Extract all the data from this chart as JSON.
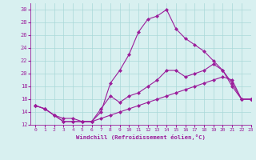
{
  "xlabel": "Windchill (Refroidissement éolien,°C)",
  "x": [
    0,
    1,
    2,
    3,
    4,
    5,
    6,
    7,
    8,
    9,
    10,
    11,
    12,
    13,
    14,
    15,
    16,
    17,
    18,
    19,
    20,
    21,
    22,
    23
  ],
  "line1": [
    15,
    14.5,
    13.5,
    13,
    13,
    12.5,
    12.5,
    13,
    13.5,
    14,
    14.5,
    15,
    15.5,
    16,
    16.5,
    17,
    17.5,
    18,
    18.5,
    19,
    19.5,
    19,
    16,
    16
  ],
  "line2": [
    15,
    14.5,
    13.5,
    12.5,
    12.5,
    12.5,
    12.5,
    14,
    18.5,
    20.5,
    23,
    26.5,
    28.5,
    29,
    30,
    27,
    25.5,
    24.5,
    23.5,
    22,
    20.5,
    18,
    16,
    16
  ],
  "line3": [
    15,
    14.5,
    13.5,
    12.5,
    12.5,
    12.5,
    12.5,
    14.5,
    16.5,
    15.5,
    16.5,
    17,
    18,
    19,
    20.5,
    20.5,
    19.5,
    20,
    20.5,
    21.5,
    20.5,
    18.5,
    16,
    16
  ],
  "line_color": "#9B1E9B",
  "bg_color": "#d8f0f0",
  "grid_color": "#aad8d8",
  "ylim": [
    12,
    31
  ],
  "xlim": [
    -0.5,
    23
  ]
}
